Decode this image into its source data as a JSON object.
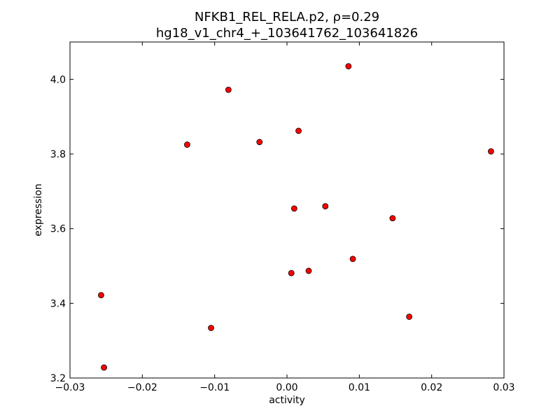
{
  "chart_data": {
    "type": "scatter",
    "title_line1": "NFKB1_REL_RELA.p2, ρ=0.29",
    "title_line2": "hg18_v1_chr4_+_103641762_103641826",
    "xlabel": "activity",
    "ylabel": "expression",
    "xlim": [
      -0.03,
      0.03
    ],
    "ylim": [
      3.2,
      4.1
    ],
    "x_ticks": [
      -0.03,
      -0.02,
      -0.01,
      0.0,
      0.01,
      0.02,
      0.03
    ],
    "x_tick_labels": [
      "−0.03",
      "−0.02",
      "−0.01",
      "0.00",
      "0.01",
      "0.02",
      "0.03"
    ],
    "y_ticks": [
      3.2,
      3.4,
      3.6,
      3.8,
      4.0
    ],
    "y_tick_labels": [
      "3.2",
      "3.4",
      "3.6",
      "3.8",
      "4.0"
    ],
    "grid": false,
    "marker_color": "#ff0000",
    "marker_edge_color": "#000000",
    "points": [
      {
        "x": 0.0085,
        "y": 4.035
      },
      {
        "x": -0.0081,
        "y": 3.972
      },
      {
        "x": 0.0016,
        "y": 3.862
      },
      {
        "x": -0.0038,
        "y": 3.832
      },
      {
        "x": -0.0138,
        "y": 3.825
      },
      {
        "x": 0.0282,
        "y": 3.807
      },
      {
        "x": 0.0053,
        "y": 3.66
      },
      {
        "x": 0.001,
        "y": 3.654
      },
      {
        "x": 0.0146,
        "y": 3.628
      },
      {
        "x": 0.0091,
        "y": 3.519
      },
      {
        "x": 0.003,
        "y": 3.487
      },
      {
        "x": 0.0006,
        "y": 3.481
      },
      {
        "x": -0.0257,
        "y": 3.422
      },
      {
        "x": 0.0169,
        "y": 3.364
      },
      {
        "x": -0.0105,
        "y": 3.334
      },
      {
        "x": -0.0253,
        "y": 3.228
      }
    ]
  }
}
